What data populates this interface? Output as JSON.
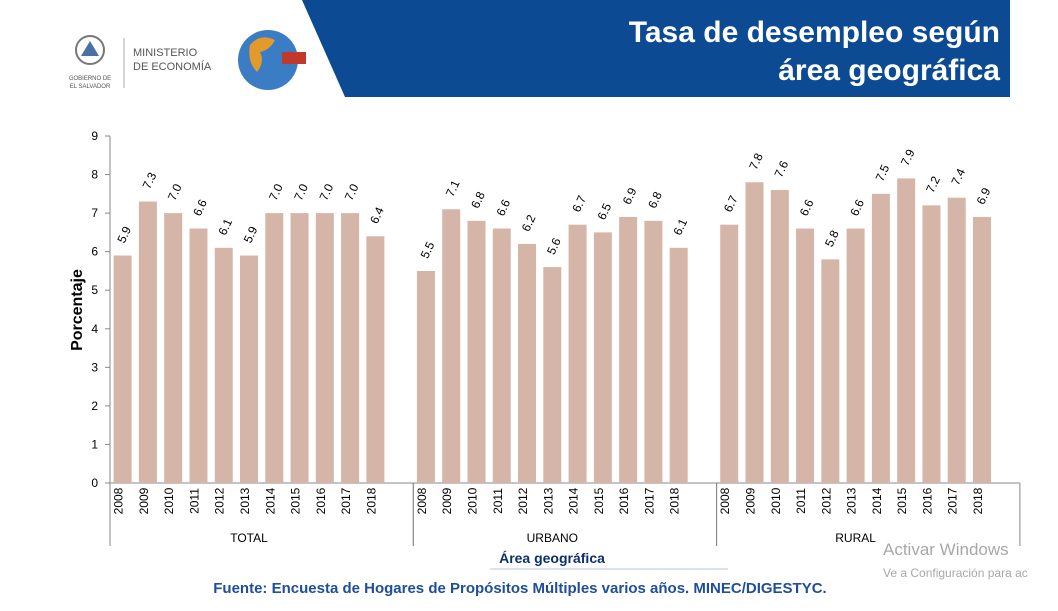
{
  "header": {
    "ministry_lines": [
      "MINISTERIO",
      "DE ECONOMÍA"
    ],
    "government_lines": [
      "GOBIERNO DE",
      "EL SALVADOR"
    ]
  },
  "chart_data": {
    "type": "bar",
    "title_lines": [
      "Tasa de desempleo según",
      "área geográfica"
    ],
    "y_label": "Porcentaje",
    "x_label": "Área geográfica",
    "color": "#d5b5a8",
    "ylim": [
      0,
      9
    ],
    "yticks": [
      0,
      1,
      2,
      3,
      4,
      5,
      6,
      7,
      8,
      9
    ],
    "groups": [
      {
        "name": "TOTAL",
        "categories": [
          "2008",
          "2009",
          "2010",
          "2011",
          "2012",
          "2013",
          "2014",
          "2015",
          "2016",
          "2017",
          "2018"
        ],
        "values": [
          5.9,
          7.3,
          7.0,
          6.6,
          6.1,
          5.9,
          7.0,
          7.0,
          7.0,
          7.0,
          6.4
        ],
        "value_labels": [
          "5.9",
          "7.3",
          "7.0",
          "6.6",
          "6.1",
          "5.9",
          "7.0",
          "7.0",
          "7.0",
          "7.0",
          "6.4"
        ]
      },
      {
        "name": "URBANO",
        "categories": [
          "2008",
          "2009",
          "2010",
          "2011",
          "2012",
          "2013",
          "2014",
          "2015",
          "2016",
          "2017",
          "2018"
        ],
        "values": [
          5.5,
          7.1,
          6.8,
          6.6,
          6.2,
          5.6,
          6.7,
          6.5,
          6.9,
          6.8,
          6.1
        ],
        "value_labels": [
          "5.5",
          "7.1",
          "6.8",
          "6.6",
          "6.2",
          "5.6",
          "6.7",
          "6.5",
          "6.9",
          "6.8",
          "6.1"
        ]
      },
      {
        "name": "RURAL",
        "categories": [
          "2008",
          "2009",
          "2010",
          "2011",
          "2012",
          "2013",
          "2014",
          "2015",
          "2016",
          "2017",
          "2018"
        ],
        "values": [
          6.7,
          7.8,
          7.6,
          6.6,
          5.8,
          6.6,
          7.5,
          7.9,
          7.2,
          7.4,
          6.9
        ],
        "value_labels": [
          "6.7",
          "7.8",
          "7.6",
          "6.6",
          "5.8",
          "6.6",
          "7.5",
          "7.9",
          "7.2",
          "7.4",
          "6.9"
        ]
      }
    ]
  },
  "source": "Fuente: Encuesta de Hogares de Propósitos Múltiples varios años. MINEC/DIGESTYC.",
  "watermark": {
    "title": "Activar Windows",
    "text": "Ve a Configuración para ac"
  }
}
